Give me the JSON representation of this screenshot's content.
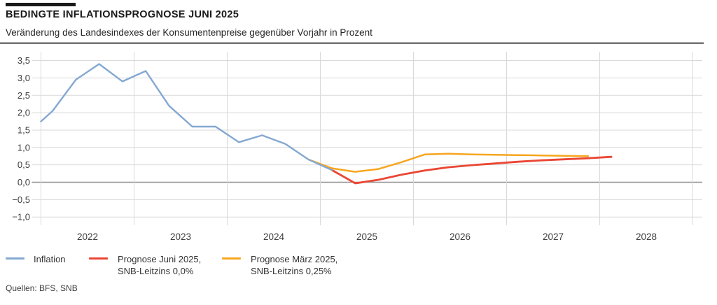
{
  "header": {
    "title": "BEDINGTE INFLATIONSPROGNOSE JUNI 2025",
    "subtitle": "Veränderung des Landesindexes der Konsumentenpreise gegenüber Vorjahr in Prozent"
  },
  "footer": {
    "source": "Quellen: BFS, SNB"
  },
  "legend": {
    "items": [
      {
        "name": "inflation",
        "color": "#84a8d1",
        "lines": [
          "Inflation"
        ]
      },
      {
        "name": "prognose-juni-2025",
        "color": "#ea4634",
        "lines": [
          "Prognose Juni 2025,",
          "SNB-Leitzins 0,0%"
        ]
      },
      {
        "name": "prognose-maerz-2025",
        "color": "#f7a61e",
        "lines": [
          "Prognose März 2025,",
          "SNB-Leitzins 0,25%"
        ]
      }
    ]
  },
  "chart_data": {
    "type": "line",
    "title": "BEDINGTE INFLATIONSPROGNOSE JUNI 2025",
    "ylabel": "Veränderung des Landesindexes der Konsumentenpreise gegenüber Vorjahr in Prozent",
    "grid": true,
    "legend_position": "bottom",
    "x_axis": {
      "min": 2022,
      "max": 2029,
      "gridlines": [
        2022,
        2023,
        2024,
        2025,
        2026,
        2027,
        2028,
        2029
      ],
      "ticks": [
        {
          "label": "2022",
          "x": 2022.5
        },
        {
          "label": "2023",
          "x": 2023.5
        },
        {
          "label": "2024",
          "x": 2024.5
        },
        {
          "label": "2025",
          "x": 2025.5
        },
        {
          "label": "2026",
          "x": 2026.5
        },
        {
          "label": "2027",
          "x": 2027.5
        },
        {
          "label": "2028",
          "x": 2028.5
        }
      ]
    },
    "y_axis": {
      "min": -1.0,
      "max": 3.5,
      "step": 0.5,
      "zero_line_value": 0,
      "ticks": [
        {
          "label": "3,5",
          "value": 3.5
        },
        {
          "label": "3,0",
          "value": 3.0
        },
        {
          "label": "2,5",
          "value": 2.5
        },
        {
          "label": "2,0",
          "value": 2.0
        },
        {
          "label": "1,5",
          "value": 1.5
        },
        {
          "label": "1,0",
          "value": 1.0
        },
        {
          "label": "0,5",
          "value": 0.5
        },
        {
          "label": "0,0",
          "value": 0.0
        },
        {
          "label": "−0,5",
          "value": -0.5
        },
        {
          "label": "−1,0",
          "value": -1.0
        }
      ]
    },
    "colors": {
      "inflation": "#84a8d1",
      "prognose_juni": "#ea4634",
      "prognose_maerz": "#f7a61e",
      "gridline": "#d9d9d9",
      "zero_line": "#8f8f8f"
    },
    "series": [
      {
        "name": "Inflation",
        "color": "#84a8d1",
        "points": [
          [
            2022.0,
            1.75
          ],
          [
            2022.125,
            2.05
          ],
          [
            2022.375,
            2.95
          ],
          [
            2022.625,
            3.4
          ],
          [
            2022.875,
            2.9
          ],
          [
            2023.125,
            3.2
          ],
          [
            2023.375,
            2.2
          ],
          [
            2023.625,
            1.6
          ],
          [
            2023.875,
            1.6
          ],
          [
            2024.125,
            1.15
          ],
          [
            2024.375,
            1.35
          ],
          [
            2024.625,
            1.1
          ],
          [
            2024.875,
            0.65
          ],
          [
            2025.125,
            0.35
          ]
        ]
      },
      {
        "name": "Prognose Juni 2025, SNB-Leitzins 0,0%",
        "color": "#ea4634",
        "points": [
          [
            2025.125,
            0.35
          ],
          [
            2025.375,
            -0.03
          ],
          [
            2025.625,
            0.07
          ],
          [
            2025.875,
            0.22
          ],
          [
            2026.125,
            0.34
          ],
          [
            2026.375,
            0.43
          ],
          [
            2026.625,
            0.49
          ],
          [
            2026.875,
            0.54
          ],
          [
            2027.125,
            0.59
          ],
          [
            2027.375,
            0.63
          ],
          [
            2027.625,
            0.66
          ],
          [
            2027.875,
            0.69
          ],
          [
            2028.125,
            0.73
          ]
        ]
      },
      {
        "name": "Prognose März 2025, SNB-Leitzins 0,25%",
        "color": "#f7a61e",
        "points": [
          [
            2024.875,
            0.65
          ],
          [
            2025.125,
            0.4
          ],
          [
            2025.375,
            0.3
          ],
          [
            2025.625,
            0.38
          ],
          [
            2025.875,
            0.58
          ],
          [
            2026.125,
            0.8
          ],
          [
            2026.375,
            0.82
          ],
          [
            2026.625,
            0.8
          ],
          [
            2026.875,
            0.79
          ],
          [
            2027.125,
            0.78
          ],
          [
            2027.375,
            0.77
          ],
          [
            2027.625,
            0.76
          ],
          [
            2027.875,
            0.75
          ]
        ]
      }
    ]
  }
}
